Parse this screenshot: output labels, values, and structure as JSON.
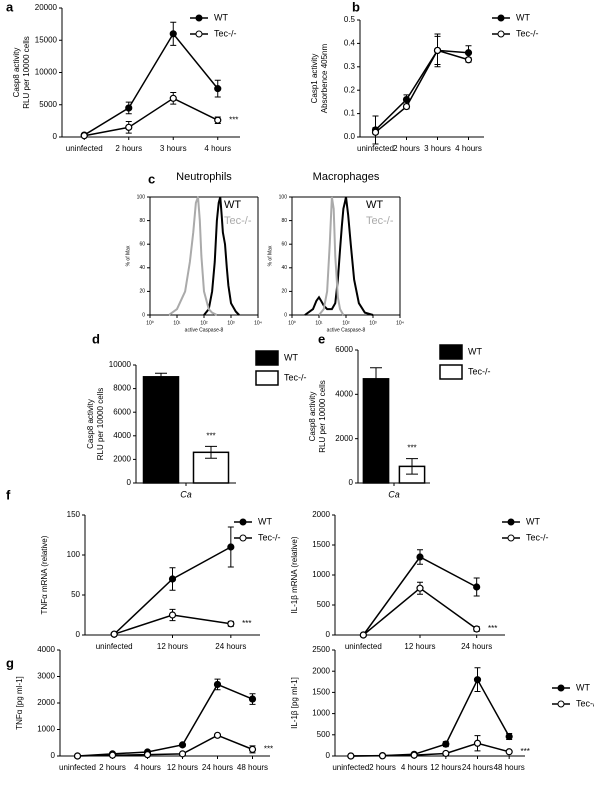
{
  "chart_data": [
    {
      "type": "line",
      "panel_label": "a",
      "ylabel": [
        "Casp8 activity",
        "RLU per 10000 cells"
      ],
      "categories": [
        "uninfected",
        "2 hours",
        "3 hours",
        "4 hours"
      ],
      "series": [
        {
          "name": "WT",
          "color": "#000000",
          "marker": "filled",
          "values": [
            300,
            4500,
            16000,
            7500
          ],
          "errors": [
            200,
            900,
            1800,
            1300
          ]
        },
        {
          "name": "Tec-/-",
          "color": "#000000",
          "marker": "open",
          "values": [
            200,
            1500,
            6000,
            2600
          ],
          "errors": [
            150,
            900,
            900,
            500
          ]
        }
      ],
      "ylim": [
        0,
        20000
      ],
      "yticks": [
        0,
        5000,
        10000,
        15000,
        20000
      ],
      "annotation": "***"
    },
    {
      "type": "line",
      "panel_label": "b",
      "ylabel": [
        "Casp1 activity",
        "Absorbence 405nm"
      ],
      "categories": [
        "uninfected",
        "2 hours",
        "3 hours",
        "4 hours"
      ],
      "series": [
        {
          "name": "WT",
          "color": "#000000",
          "marker": "filled",
          "values": [
            0.03,
            0.16,
            0.37,
            0.36
          ],
          "errors": [
            0.06,
            0.02,
            0.07,
            0.03
          ]
        },
        {
          "name": "Tec-/-",
          "color": "#000000",
          "marker": "open",
          "values": [
            0.02,
            0.13,
            0.37,
            0.33
          ],
          "errors": [
            0.02,
            0.01,
            0.06,
            0.01
          ]
        }
      ],
      "ylim": [
        0,
        0.5
      ],
      "yticks": [
        {
          "value": 0,
          "label": "0.0"
        },
        0.1,
        0.2,
        0.3,
        0.4,
        0.5
      ]
    },
    {
      "type": "line",
      "panel_label": "c",
      "title": "Neutrophils",
      "ylabel": [
        "% of Max"
      ],
      "xlabel": "active Caspase-8",
      "xscale": "log",
      "series": [
        {
          "name": "WT",
          "color": "#000000",
          "x": [
            100,
            150,
            200,
            250,
            300,
            350,
            400,
            450,
            500,
            600,
            700,
            800,
            1000,
            1500,
            2000
          ],
          "values": [
            0,
            5,
            20,
            45,
            80,
            95,
            100,
            85,
            70,
            60,
            40,
            25,
            10,
            3,
            0
          ]
        },
        {
          "name": "Tec-/-",
          "color": "#aaaaaa",
          "x": [
            5,
            10,
            20,
            30,
            40,
            50,
            60,
            70,
            80,
            100,
            150,
            200,
            300
          ],
          "values": [
            0,
            5,
            20,
            45,
            70,
            95,
            100,
            80,
            50,
            20,
            5,
            2,
            0
          ]
        }
      ],
      "xlim": [
        1,
        10000
      ],
      "xticks": [
        {
          "value": 1,
          "label": "10⁰"
        },
        {
          "value": 10,
          "label": "10¹"
        },
        {
          "value": 100,
          "label": "10²"
        },
        {
          "value": 1000,
          "label": "10³"
        },
        {
          "value": 10000,
          "label": "10⁴"
        }
      ],
      "ylim": [
        0,
        100
      ],
      "yticks": [
        0,
        20,
        40,
        60,
        80,
        100
      ]
    },
    {
      "type": "line",
      "title": "Macrophages",
      "ylabel": [
        "% of Max"
      ],
      "xlabel": "active Caspase-8",
      "xscale": "log",
      "series": [
        {
          "name": "WT",
          "color": "#000000",
          "x": [
            3,
            6,
            8,
            10,
            12,
            15,
            20,
            30,
            40,
            50,
            60,
            70,
            80,
            90,
            100,
            120,
            150,
            200,
            300,
            500,
            1000
          ],
          "values": [
            0,
            5,
            12,
            15,
            12,
            8,
            5,
            5,
            10,
            30,
            55,
            75,
            90,
            95,
            100,
            85,
            60,
            30,
            10,
            2,
            0
          ]
        },
        {
          "name": "Tec-/-",
          "color": "#aaaaaa",
          "x": [
            10,
            15,
            20,
            25,
            30,
            35,
            40,
            50,
            60,
            80
          ],
          "values": [
            0,
            5,
            20,
            60,
            100,
            90,
            50,
            15,
            5,
            0
          ]
        }
      ],
      "xlim": [
        1,
        10000
      ],
      "xticks": [
        {
          "value": 1,
          "label": "10⁰"
        },
        {
          "value": 10,
          "label": "10¹"
        },
        {
          "value": 100,
          "label": "10²"
        },
        {
          "value": 1000,
          "label": "10³"
        },
        {
          "value": 10000,
          "label": "10⁴"
        }
      ],
      "ylim": [
        0,
        100
      ],
      "yticks": [
        0,
        20,
        40,
        60,
        80,
        100
      ]
    },
    {
      "type": "bar",
      "panel_label": "d",
      "ylabel": [
        "Casp8 activity",
        "RLU per 10000 cells"
      ],
      "categories": [
        "Ca"
      ],
      "series": [
        {
          "name": "WT",
          "color": "#000000",
          "values": [
            9000
          ],
          "errors": [
            300
          ]
        },
        {
          "name": "Tec-/-",
          "color": "#ffffff",
          "values": [
            2600
          ],
          "errors": [
            500
          ]
        }
      ],
      "ylim": [
        0,
        10000
      ],
      "yticks": [
        0,
        2000,
        4000,
        6000,
        8000,
        10000
      ],
      "annotation": "***"
    },
    {
      "type": "bar",
      "panel_label": "e",
      "ylabel": [
        "Casp8 activity",
        "RLU per 10000 cells"
      ],
      "categories": [
        "Ca"
      ],
      "series": [
        {
          "name": "WT",
          "color": "#000000",
          "values": [
            4700
          ],
          "errors": [
            500
          ]
        },
        {
          "name": "Tec-/-",
          "color": "#ffffff",
          "values": [
            750
          ],
          "errors": [
            350
          ]
        }
      ],
      "ylim": [
        0,
        6000
      ],
      "yticks": [
        0,
        2000,
        4000,
        6000
      ],
      "annotation": "***"
    },
    {
      "type": "line",
      "panel_label": "f",
      "ylabel": [
        "TNFα mRNA (relative)"
      ],
      "categories": [
        "uninfected",
        "12 hours",
        "24 hours"
      ],
      "series": [
        {
          "name": "WT",
          "color": "#000000",
          "marker": "filled",
          "values": [
            1,
            70,
            110
          ],
          "errors": [
            1,
            14,
            25
          ]
        },
        {
          "name": "Tec-/-",
          "color": "#000000",
          "marker": "open",
          "values": [
            1,
            25,
            14
          ],
          "errors": [
            1,
            7,
            3
          ]
        }
      ],
      "ylim": [
        0,
        150
      ],
      "yticks": [
        0,
        50,
        100,
        150
      ],
      "annotation": "***"
    },
    {
      "type": "line",
      "ylabel": [
        "IL-1β mRNA (relative)"
      ],
      "categories": [
        "uninfected",
        "12 hours",
        "24 hours"
      ],
      "series": [
        {
          "name": "WT",
          "color": "#000000",
          "marker": "filled",
          "values": [
            0,
            1300,
            800
          ],
          "errors": [
            10,
            120,
            150
          ]
        },
        {
          "name": "Tec-/-",
          "color": "#000000",
          "marker": "open",
          "values": [
            0,
            780,
            100
          ],
          "errors": [
            10,
            100,
            40
          ]
        }
      ],
      "ylim": [
        0,
        2000
      ],
      "yticks": [
        0,
        500,
        1000,
        1500,
        2000
      ],
      "annotation": "***"
    },
    {
      "type": "line",
      "panel_label": "g",
      "ylabel": [
        "TNFα [pg ml-1]"
      ],
      "categories": [
        "uninfected",
        "2 hours",
        "4 hours",
        "12 hours",
        "24 hours",
        "48 hours"
      ],
      "series": [
        {
          "color": "#000000",
          "marker": "filled",
          "values": [
            0,
            80,
            150,
            420,
            2700,
            2150
          ],
          "errors": [
            10,
            20,
            30,
            40,
            200,
            200
          ]
        },
        {
          "color": "#000000",
          "marker": "open",
          "values": [
            0,
            30,
            50,
            80,
            780,
            250
          ],
          "errors": [
            10,
            10,
            10,
            20,
            50,
            130
          ]
        }
      ],
      "ylim": [
        0,
        4000
      ],
      "yticks": [
        0,
        1000,
        2000,
        3000,
        4000
      ],
      "annotation": "***"
    },
    {
      "type": "line",
      "ylabel": [
        "IL-1β [pg ml-1]"
      ],
      "categories": [
        "uninfected",
        "2 hours",
        "4 hours",
        "12 hours",
        "24 hours",
        "48 hours"
      ],
      "series": [
        {
          "name": "WT",
          "color": "#000000",
          "marker": "filled",
          "values": [
            0,
            10,
            40,
            280,
            1800,
            460
          ],
          "errors": [
            5,
            5,
            10,
            60,
            280,
            70
          ]
        },
        {
          "name": "Tec-/-",
          "color": "#000000",
          "marker": "open",
          "values": [
            0,
            5,
            20,
            60,
            300,
            100
          ],
          "errors": [
            5,
            5,
            10,
            30,
            180,
            20
          ]
        }
      ],
      "ylim": [
        0,
        2500
      ],
      "yticks": [
        0,
        500,
        1000,
        1500,
        2000,
        2500
      ],
      "annotation": "***"
    }
  ]
}
